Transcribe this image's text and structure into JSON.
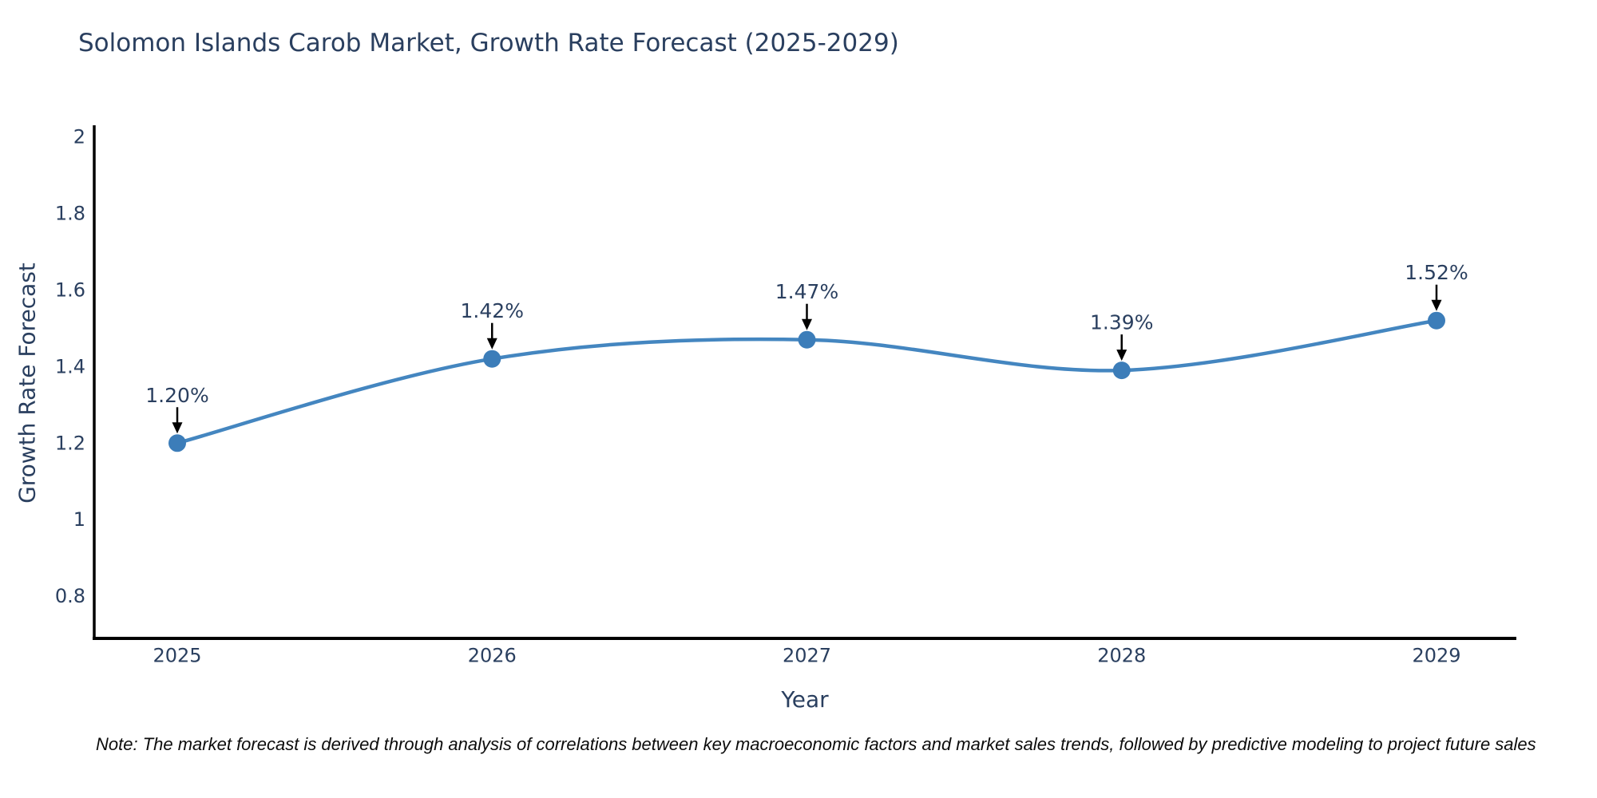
{
  "note": "Note: The market forecast is derived through analysis of correlations between key macroeconomic factors and market sales trends, followed by predictive modeling to project future sales",
  "chart_data": {
    "type": "line",
    "title": "Solomon Islands Carob Market, Growth Rate Forecast (2025-2029)",
    "xlabel": "Year",
    "ylabel": "Growth Rate Forecast",
    "categories": [
      "2025",
      "2026",
      "2027",
      "2028",
      "2029"
    ],
    "series": [
      {
        "name": "Growth Rate Forecast",
        "values": [
          1.2,
          1.42,
          1.47,
          1.39,
          1.52
        ],
        "point_labels": [
          "1.20%",
          "1.42%",
          "1.47%",
          "1.39%",
          "1.52%"
        ]
      }
    ],
    "line_shape": "spline",
    "markers": true,
    "annotations_arrows": true,
    "grid": false,
    "legend_position": "none",
    "yticks": [
      0.8,
      1,
      1.2,
      1.4,
      1.6,
      1.8,
      2
    ],
    "ytick_labels": [
      "0.8",
      "1",
      "1.2",
      "1.4",
      "1.6",
      "1.8",
      "2"
    ],
    "ylim": [
      0.69,
      2.03
    ],
    "colors": {
      "line": "#4486c0",
      "marker": "#3c7db9",
      "arrow": "#000000",
      "text": "#2a3f5f",
      "axis_line": "#000000",
      "note_text": "#0c0c0c",
      "background": "#ffffff"
    }
  }
}
